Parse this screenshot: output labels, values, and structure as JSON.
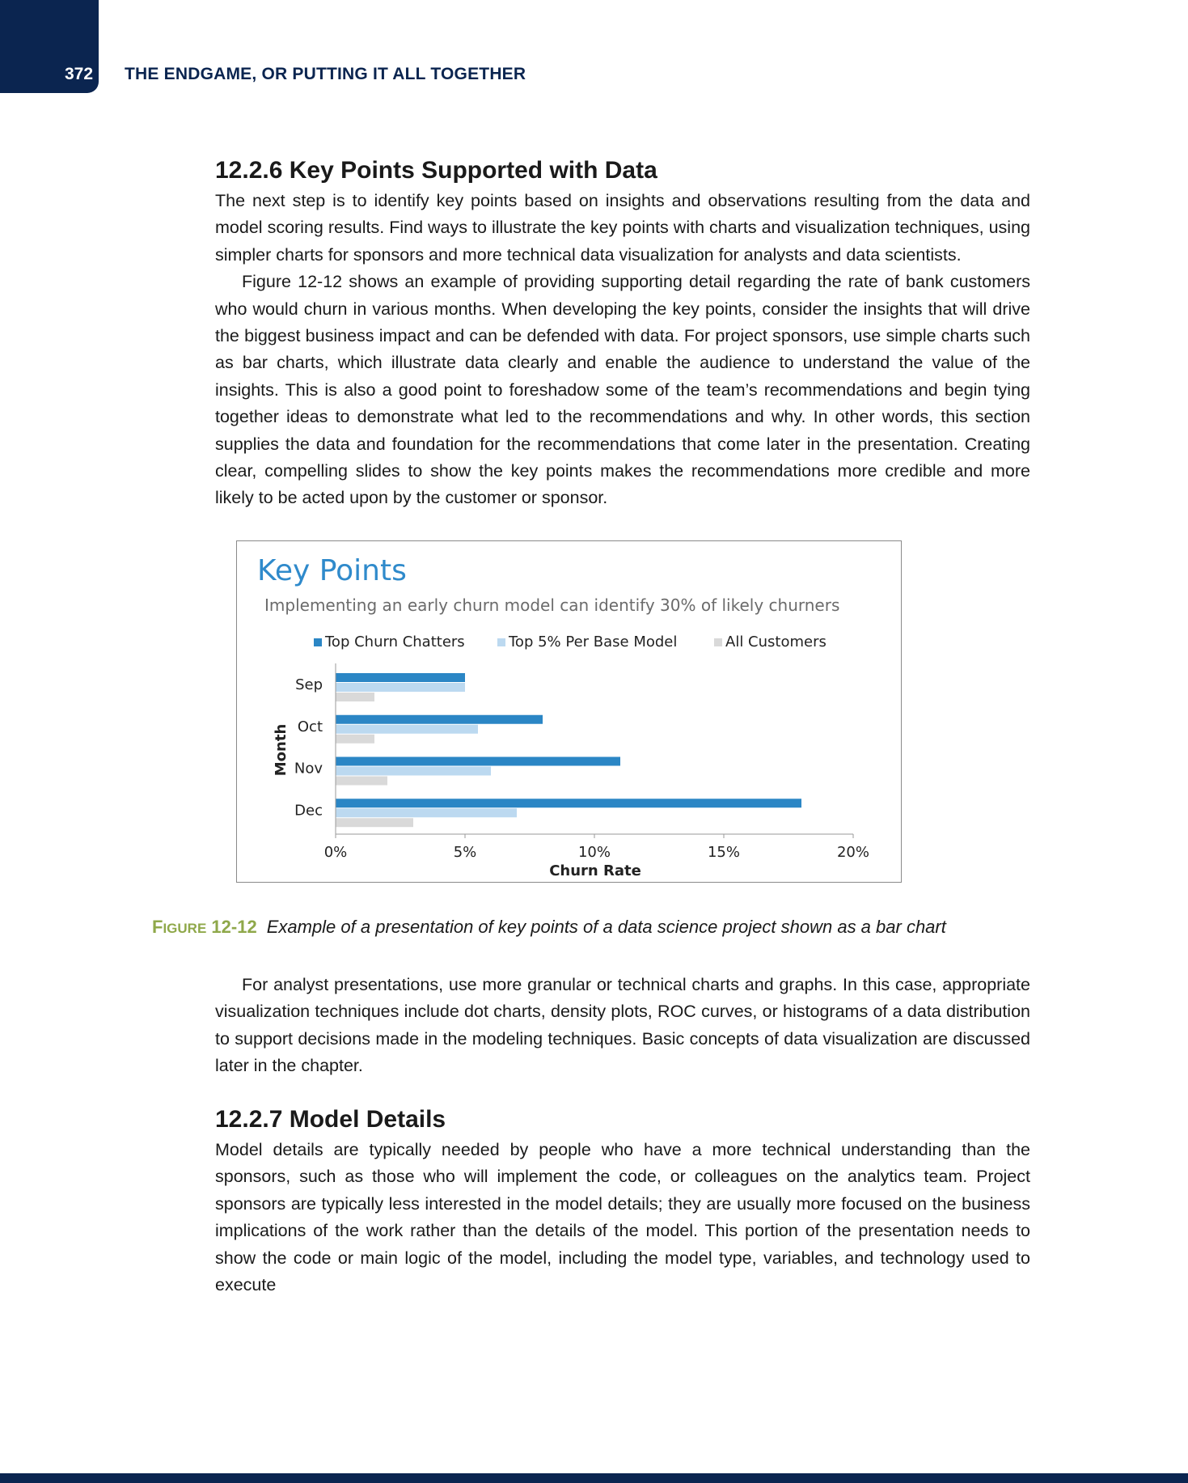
{
  "header": {
    "page_number": "372",
    "running_title": "THE ENDGAME, OR PUTTING IT ALL TOGETHER"
  },
  "section_1": {
    "heading": "12.2.6 Key Points Supported with Data",
    "paragraphs": [
      "The next step is to identify key points based on insights and observations resulting from the data and model scoring results. Find ways to illustrate the key points with charts and visualization techniques, using simpler charts for sponsors and more technical data visualization for analysts and data scientists.",
      "Figure 12-12 shows an example of providing supporting detail regarding the rate of bank customers who would churn in various months. When developing the key points, consider the insights that will drive the biggest business impact and can be defended with data. For project sponsors, use simple charts such as bar charts, which illustrate data clearly and enable the audience to understand the value of the insights. This is also a good point to foreshadow some of the team’s recommendations and begin tying together ideas to demonstrate what led to the recommendations and why. In other words, this section supplies the data and foundation for the recommendations that come later in the presentation. Creating clear, compelling slides to show the key points makes the recommendations more credible and more likely to be acted upon by the customer or sponsor."
    ]
  },
  "figure": {
    "label_first": "F",
    "label_rest": "IGURE",
    "label_number": "12-12",
    "caption": "Example of a presentation of key points of a data science project shown as a bar chart"
  },
  "section_1_after": {
    "paragraph": "For analyst presentations, use more granular or technical charts and graphs. In this case, appropriate visualization techniques include dot charts, density plots, ROC curves, or histograms of a data distribution to support decisions made in the modeling techniques. Basic concepts of data visualization are discussed later in the chapter."
  },
  "section_2": {
    "heading": "12.2.7 Model Details",
    "paragraph": "Model details are typically needed by people who have a more technical understanding than the sponsors, such as those who will implement the code, or colleagues on the analytics team. Project sponsors are typically less interested in the model details; they are usually more focused on the business implications of the work rather than the details of the model. This portion of the presentation needs to show the code or main logic of the model, including the model type, variables, and technology used to execute"
  },
  "chart_data": {
    "type": "bar",
    "orientation": "horizontal",
    "title": "Key Points",
    "subtitle": "Implementing an early churn model can identify 30% of likely churners",
    "categories": [
      "Sep",
      "Oct",
      "Nov",
      "Dec"
    ],
    "series": [
      {
        "name": "Top Churn Chatters",
        "values": [
          5,
          8,
          11,
          18
        ],
        "color": "#2b86c5"
      },
      {
        "name": "Top 5% Per Base Model",
        "values": [
          5,
          5.5,
          6,
          7
        ],
        "color": "#bcd9f0"
      },
      {
        "name": "All Customers",
        "values": [
          1.5,
          1.5,
          2,
          3
        ],
        "color": "#d9d9d9"
      }
    ],
    "xlabel": "Churn Rate",
    "ylabel": "Month",
    "xlim": [
      0,
      20
    ],
    "xticks": [
      "0%",
      "5%",
      "10%",
      "15%",
      "20%"
    ],
    "xtick_values": [
      0,
      5,
      10,
      15,
      20
    ],
    "legend_position": "top",
    "grid": false,
    "colors": {
      "title": "#2f8acb",
      "subtitle": "#6b6b6b",
      "text": "#222222",
      "axis": "#9a9a9a"
    }
  }
}
